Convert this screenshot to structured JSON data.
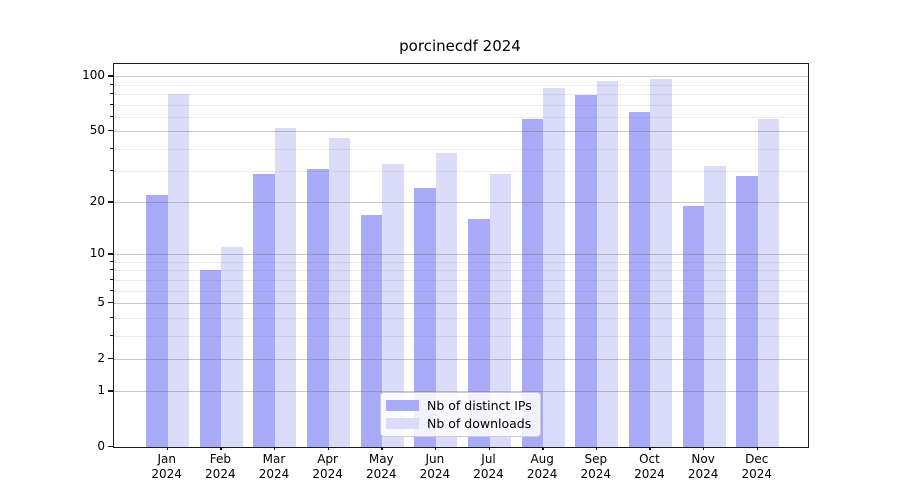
{
  "title": "porcinecdf 2024",
  "legend": {
    "items": [
      {
        "label": "Nb of distinct IPs",
        "color": "#a9aaf8"
      },
      {
        "label": "Nb of downloads",
        "color": "#dbdcf9"
      }
    ]
  },
  "chart_data": {
    "type": "bar",
    "title": "porcinecdf 2024",
    "categories": [
      "Jan 2024",
      "Feb 2024",
      "Mar 2024",
      "Apr 2024",
      "May 2024",
      "Jun 2024",
      "Jul 2024",
      "Aug 2024",
      "Sep 2024",
      "Oct 2024",
      "Nov 2024",
      "Dec 2024"
    ],
    "month_labels": [
      "Jan",
      "Feb",
      "Mar",
      "Apr",
      "May",
      "Jun",
      "Jul",
      "Aug",
      "Sep",
      "Oct",
      "Nov",
      "Dec"
    ],
    "year_label": "2024",
    "series": [
      {
        "name": "Nb of distinct IPs",
        "color": "#a9aaf8",
        "values": [
          22,
          8,
          29,
          31,
          17,
          24,
          16,
          58,
          79,
          64,
          19,
          28
        ]
      },
      {
        "name": "Nb of downloads",
        "color": "#dbdcf9",
        "values": [
          80,
          11,
          52,
          46,
          33,
          38,
          29,
          86,
          94,
          96,
          32,
          58
        ]
      }
    ],
    "xlabel": "",
    "ylabel": "",
    "yscale": "log1p",
    "ylim": [
      0,
      115
    ],
    "y_major_ticks": [
      0,
      1,
      2,
      5,
      10,
      20,
      50,
      100
    ],
    "y_minor_ticks": [
      3,
      4,
      6,
      7,
      8,
      9,
      30,
      40,
      60,
      70,
      80,
      90
    ],
    "grid": "major+minor, drawn over bars",
    "legend_position": "lower center"
  }
}
